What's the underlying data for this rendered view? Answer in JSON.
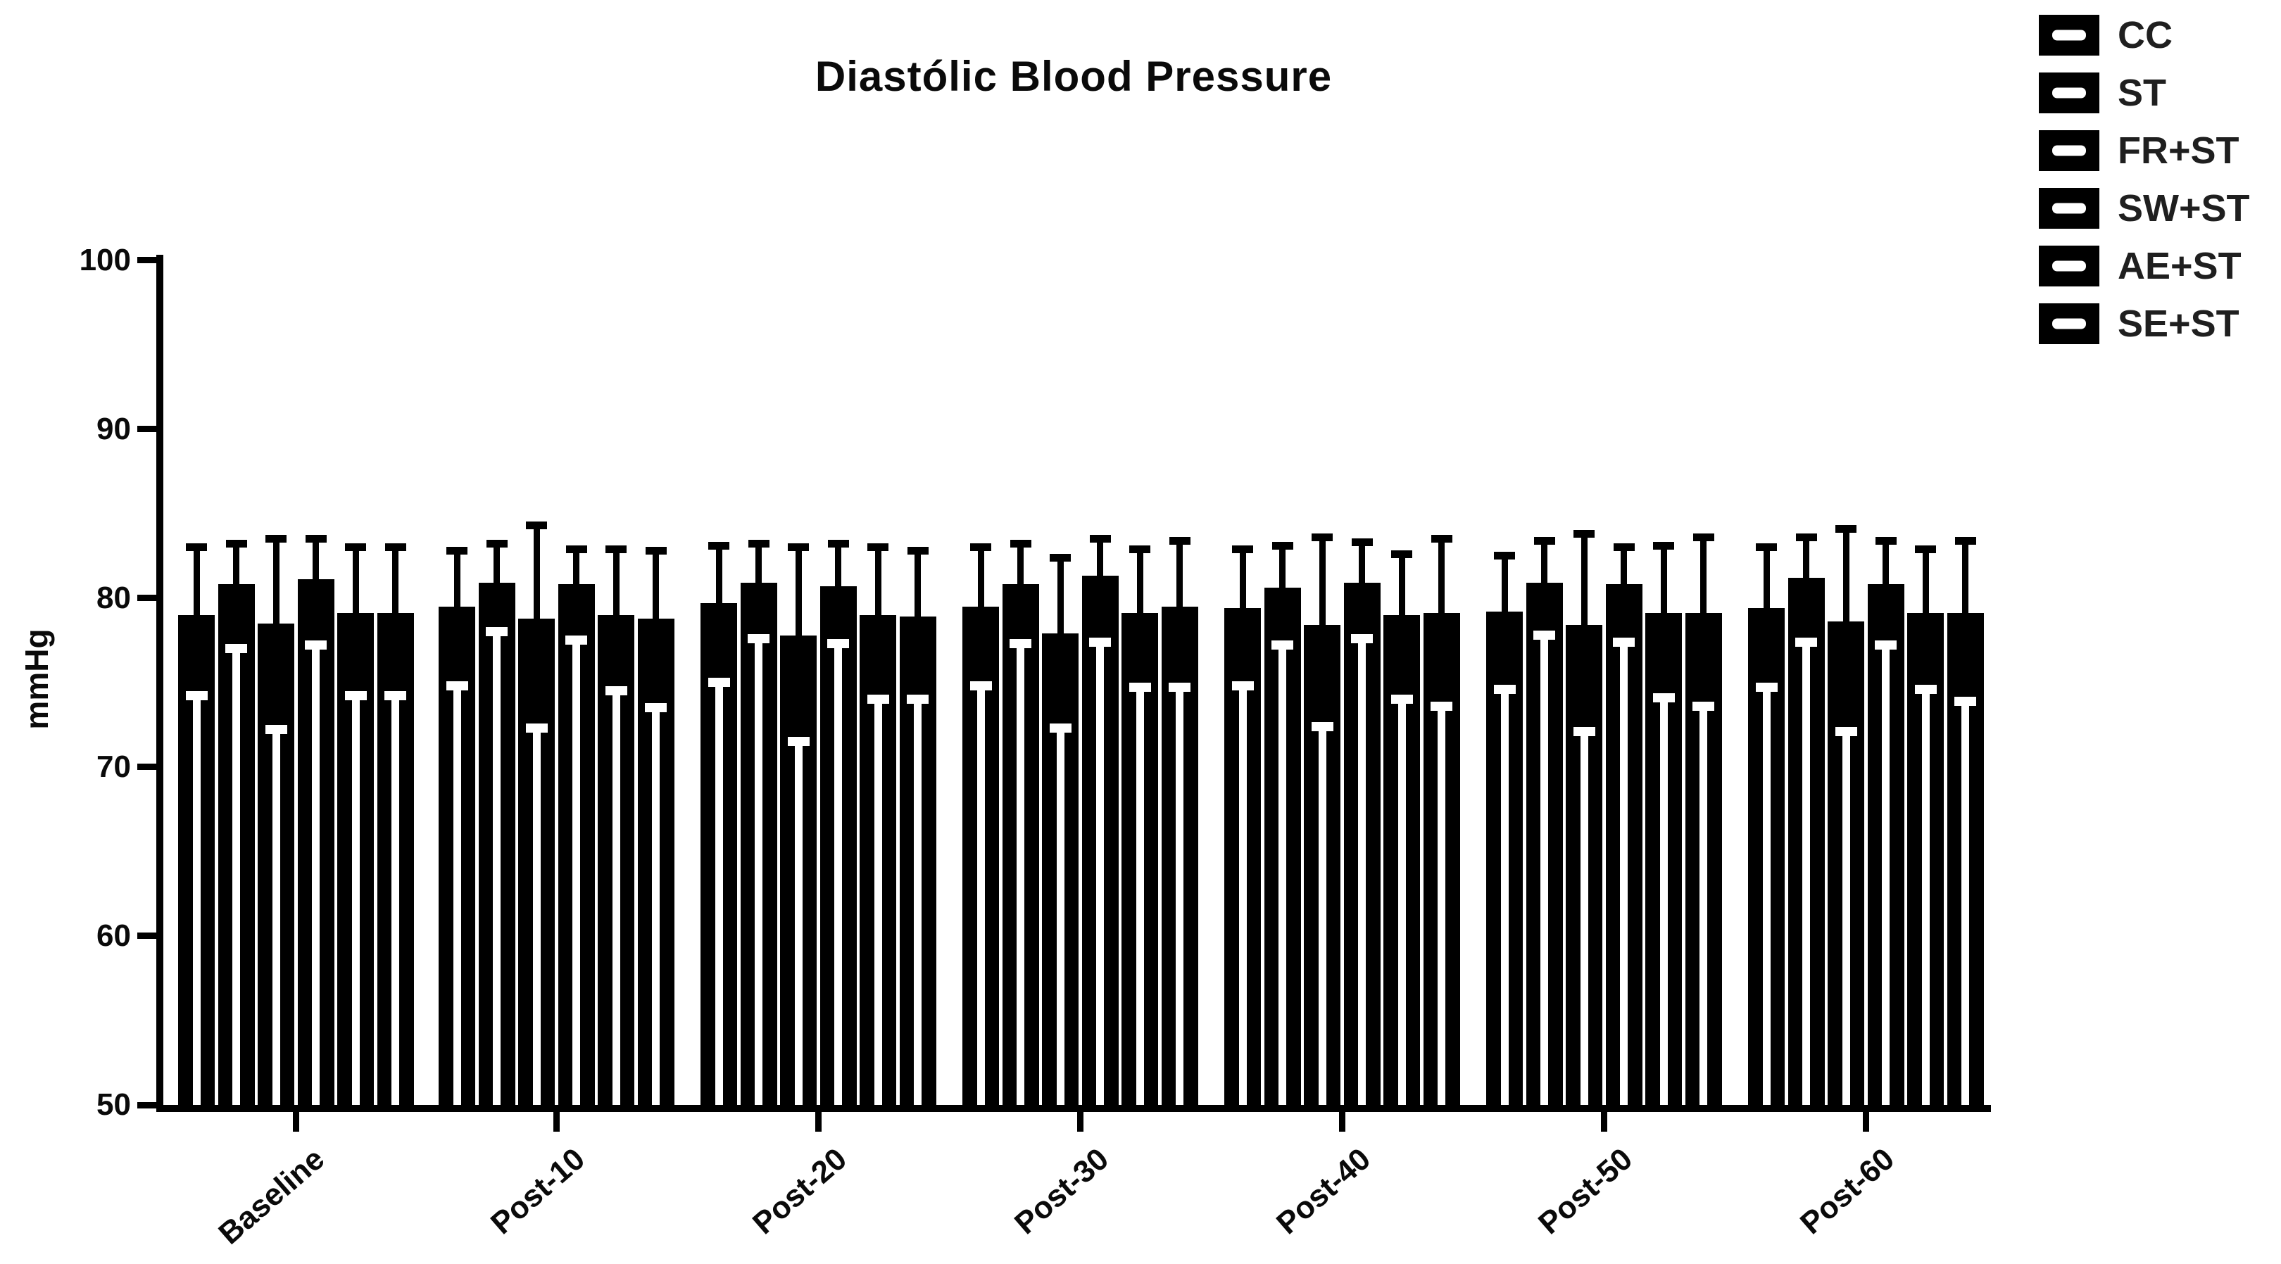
{
  "title": "Diastólic Blood Pressure",
  "y_axis": {
    "label": "mmHg",
    "min": 50,
    "max": 100,
    "ticks": [
      100,
      90,
      80,
      70,
      60,
      50
    ]
  },
  "x_axis": {
    "categories": [
      "Baseline",
      "Post-10",
      "Post-20",
      "Post-30",
      "Post-40",
      "Post-50",
      "Post-60"
    ]
  },
  "legend": {
    "items": [
      "CC",
      "ST",
      "FR+ST",
      "SW+ST",
      "AE+ST",
      "SE+ST"
    ]
  },
  "colors": {
    "bar_fill": "#000000",
    "error_upper": "#000000",
    "error_lower": "#ffffff",
    "background": "#ffffff",
    "text": "#0a0a0a"
  },
  "chart_data": {
    "type": "bar",
    "title": "Diastólic Blood Pressure",
    "xlabel": "",
    "ylabel": "mmHg",
    "ylim": [
      50,
      100
    ],
    "grid": false,
    "legend_position": "top-right",
    "categories": [
      "Baseline",
      "Post-10",
      "Post-20",
      "Post-30",
      "Post-40",
      "Post-50",
      "Post-60"
    ],
    "series": [
      {
        "name": "CC",
        "values": [
          79.0,
          79.5,
          79.7,
          79.5,
          79.4,
          79.2,
          79.4
        ],
        "err_top": [
          83.0,
          82.8,
          83.1,
          83.0,
          82.9,
          82.5,
          83.0
        ],
        "err_bot": [
          74.2,
          74.8,
          75.0,
          74.8,
          74.8,
          74.6,
          74.7
        ]
      },
      {
        "name": "ST",
        "values": [
          80.8,
          80.9,
          80.9,
          80.8,
          80.6,
          80.9,
          81.2
        ],
        "err_top": [
          83.2,
          83.2,
          83.2,
          83.2,
          83.1,
          83.4,
          83.6
        ],
        "err_bot": [
          77.0,
          78.0,
          77.6,
          77.3,
          77.2,
          77.8,
          77.4
        ]
      },
      {
        "name": "FR+ST",
        "values": [
          78.5,
          78.8,
          77.8,
          77.9,
          78.4,
          78.4,
          78.6
        ],
        "err_top": [
          83.5,
          84.3,
          83.0,
          82.4,
          83.6,
          83.8,
          84.1
        ],
        "err_bot": [
          72.2,
          72.3,
          71.5,
          72.3,
          72.4,
          72.1,
          72.1
        ]
      },
      {
        "name": "SW+ST",
        "values": [
          81.1,
          80.8,
          80.7,
          81.3,
          80.9,
          80.8,
          80.8
        ],
        "err_top": [
          83.5,
          82.9,
          83.2,
          83.5,
          83.3,
          83.0,
          83.4
        ],
        "err_bot": [
          77.2,
          77.5,
          77.3,
          77.4,
          77.6,
          77.4,
          77.2
        ]
      },
      {
        "name": "AE+ST",
        "values": [
          79.1,
          79.0,
          79.0,
          79.1,
          79.0,
          79.1,
          79.1
        ],
        "err_top": [
          83.0,
          82.9,
          83.0,
          82.9,
          82.6,
          83.1,
          82.9
        ],
        "err_bot": [
          74.2,
          74.5,
          74.0,
          74.7,
          74.0,
          74.1,
          74.6
        ]
      },
      {
        "name": "SE+ST",
        "values": [
          79.1,
          78.8,
          78.9,
          79.5,
          79.1,
          79.1,
          79.1
        ],
        "err_top": [
          83.0,
          82.8,
          82.8,
          83.4,
          83.5,
          83.6,
          83.4
        ],
        "err_bot": [
          74.2,
          73.5,
          74.0,
          74.7,
          73.6,
          73.6,
          73.9
        ]
      }
    ],
    "error_bar_style": "upper whisker drawn black above bar top; lower whisker drawn as white stripe inside black bar, extending from cap to baseline"
  }
}
